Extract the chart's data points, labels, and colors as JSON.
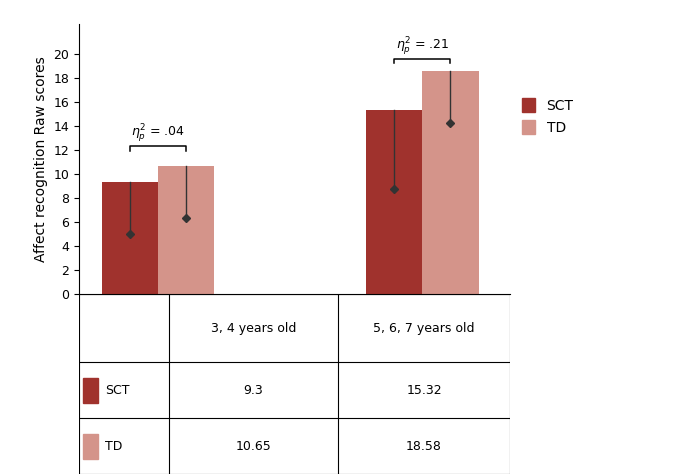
{
  "groups": [
    "3, 4 years old",
    "5, 6, 7 years old"
  ],
  "sct_values": [
    9.3,
    15.32
  ],
  "td_values": [
    10.65,
    18.58
  ],
  "sct_lower": [
    5.0,
    8.7
  ],
  "td_lower": [
    6.35,
    14.2
  ],
  "sct_color": "#A0322D",
  "td_color": "#D4948A",
  "ylabel": "Affect recognition Raw scores",
  "ylim": [
    0,
    20
  ],
  "yticks": [
    0,
    2,
    4,
    6,
    8,
    10,
    12,
    14,
    16,
    18,
    20
  ],
  "bar_width": 0.32,
  "group_positions": [
    1.0,
    2.5
  ],
  "sct_label": "SCT",
  "td_label": "TD",
  "table_sct": [
    "9.3",
    "15.32"
  ],
  "table_td": [
    "10.65",
    "18.58"
  ]
}
